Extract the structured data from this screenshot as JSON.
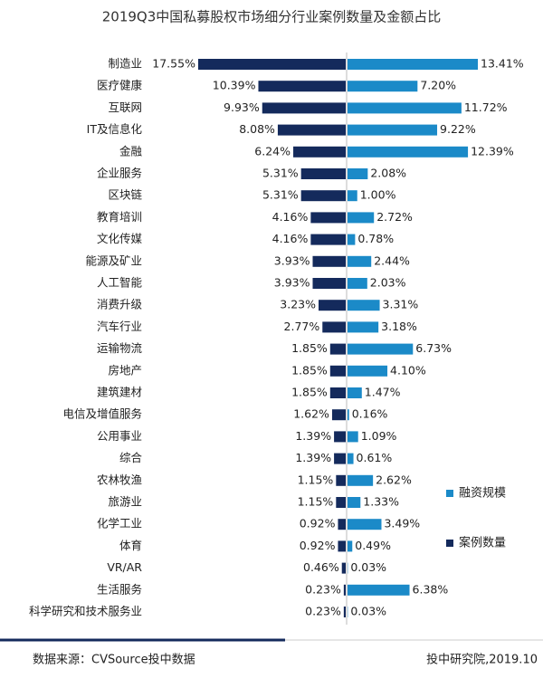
{
  "chart_data": {
    "type": "bar",
    "title": "2019Q3中国私募股权市场细分行业案例数量及金额占比",
    "categories": [
      "制造业",
      "医疗健康",
      "互联网",
      "IT及信息化",
      "金融",
      "企业服务",
      "区块链",
      "教育培训",
      "文化传媒",
      "能源及矿业",
      "人工智能",
      "消费升级",
      "汽车行业",
      "运输物流",
      "房地产",
      "建筑建材",
      "电信及增值服务",
      "公用事业",
      "综合",
      "农林牧渔",
      "旅游业",
      "化学工业",
      "体育",
      "VR/AR",
      "生活服务",
      "科学研究和技术服务业"
    ],
    "series": [
      {
        "name": "融资规模",
        "color": "#1b8ac8",
        "values": [
          13.41,
          7.2,
          11.72,
          9.22,
          12.39,
          2.08,
          1.0,
          2.72,
          0.78,
          2.44,
          2.03,
          3.31,
          3.18,
          6.73,
          4.1,
          1.47,
          0.16,
          1.09,
          0.61,
          2.62,
          1.33,
          3.49,
          0.49,
          0.03,
          6.38,
          0.03
        ],
        "value_labels": [
          "13.41%",
          "7.20%",
          "11.72%",
          "9.22%",
          "12.39%",
          "2.08%",
          "1.00%",
          "2.72%",
          "0.78%",
          "2.44%",
          "2.03%",
          "3.31%",
          "3.18%",
          "6.73%",
          "4.10%",
          "1.47%",
          "0.16%",
          "1.09%",
          "0.61%",
          "2.62%",
          "1.33%",
          "3.49%",
          "0.49%",
          "0.03%",
          "6.38%",
          "0.03%"
        ]
      },
      {
        "name": "案例数量",
        "color": "#142a5c",
        "values": [
          17.55,
          10.39,
          9.93,
          8.08,
          6.24,
          5.31,
          5.31,
          4.16,
          4.16,
          3.93,
          3.93,
          3.23,
          2.77,
          1.85,
          1.85,
          1.85,
          1.62,
          1.39,
          1.39,
          1.15,
          1.15,
          0.92,
          0.92,
          0.46,
          0.23,
          0.23
        ],
        "value_labels": [
          "17.55%",
          "10.39%",
          "9.93%",
          "8.08%",
          "6.24%",
          "5.31%",
          "5.31%",
          "4.16%",
          "4.16%",
          "3.93%",
          "3.93%",
          "3.23%",
          "2.77%",
          "1.85%",
          "1.85%",
          "1.85%",
          "1.62%",
          "1.39%",
          "1.39%",
          "1.15%",
          "1.15%",
          "0.92%",
          "0.92%",
          "0.46%",
          "0.23%",
          "0.23%"
        ]
      }
    ],
    "source": "数据来源：CVSource投中数据",
    "publisher": "投中研究院,2019.10"
  }
}
